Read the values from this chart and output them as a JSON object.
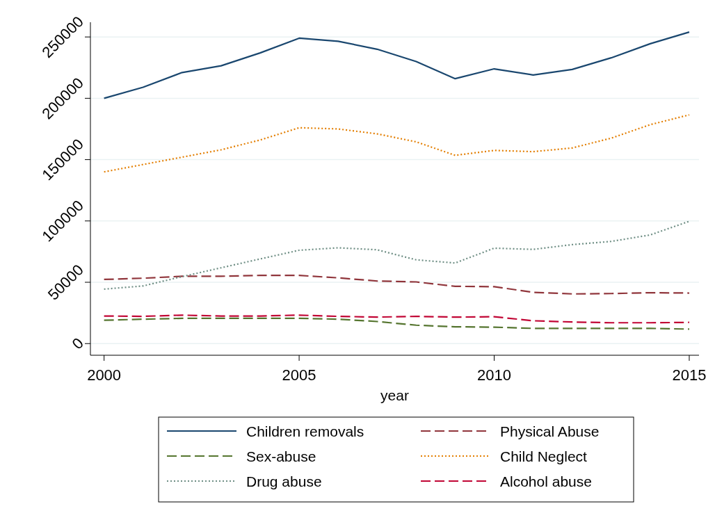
{
  "chart_data": {
    "type": "line",
    "xlabel": "year",
    "x": [
      2000,
      2001,
      2002,
      2003,
      2004,
      2005,
      2006,
      2007,
      2008,
      2009,
      2010,
      2011,
      2012,
      2013,
      2014,
      2015
    ],
    "xlim": [
      1999.65,
      2015.25
    ],
    "xticks": [
      2000,
      2005,
      2010,
      2015
    ],
    "ylim": [
      -9500,
      262000
    ],
    "yticks": [
      0,
      50000,
      100000,
      150000,
      200000,
      250000
    ],
    "grid": "y",
    "legend": "bottom",
    "marker": "none",
    "series": [
      {
        "name": "Children removals",
        "color": "#1a476f",
        "line_style": "solid",
        "values": [
          200000,
          209000,
          221000,
          226500,
          237000,
          249000,
          246500,
          240000,
          230000,
          216000,
          224000,
          219000,
          223500,
          233000,
          244500,
          254000
        ]
      },
      {
        "name": "Physical Abuse",
        "color": "#90353b",
        "line_style": "dashed",
        "values": [
          52300,
          53300,
          54900,
          54900,
          55600,
          55600,
          53600,
          51000,
          50300,
          46700,
          46400,
          41800,
          40500,
          40800,
          41500,
          41200
        ]
      },
      {
        "name": "Sex-abuse",
        "color": "#55752f",
        "line_style": "dashed",
        "values": [
          19000,
          19900,
          20600,
          20600,
          20600,
          20600,
          19900,
          18000,
          15000,
          13700,
          13400,
          12400,
          12400,
          12400,
          12400,
          11800
        ]
      },
      {
        "name": "Child Neglect",
        "color": "#e37e00",
        "line_style": "dotted",
        "values": [
          140000,
          146000,
          152000,
          158000,
          166000,
          176000,
          175000,
          171000,
          164500,
          153500,
          157500,
          156500,
          159500,
          167500,
          178500,
          186500
        ]
      },
      {
        "name": "Drug abuse",
        "color": "#6e8e84",
        "line_style": "dotted",
        "values": [
          44400,
          47000,
          54600,
          61800,
          69000,
          76100,
          78100,
          76500,
          68300,
          65700,
          77800,
          76800,
          80700,
          83300,
          88600,
          99700
        ]
      },
      {
        "name": "Alcohol abuse",
        "color": "#c10534",
        "line_style": "dashed",
        "values": [
          22500,
          22200,
          23200,
          22500,
          22500,
          23200,
          22200,
          21600,
          22200,
          21600,
          21900,
          18600,
          17600,
          17000,
          17000,
          17300
        ]
      }
    ]
  }
}
